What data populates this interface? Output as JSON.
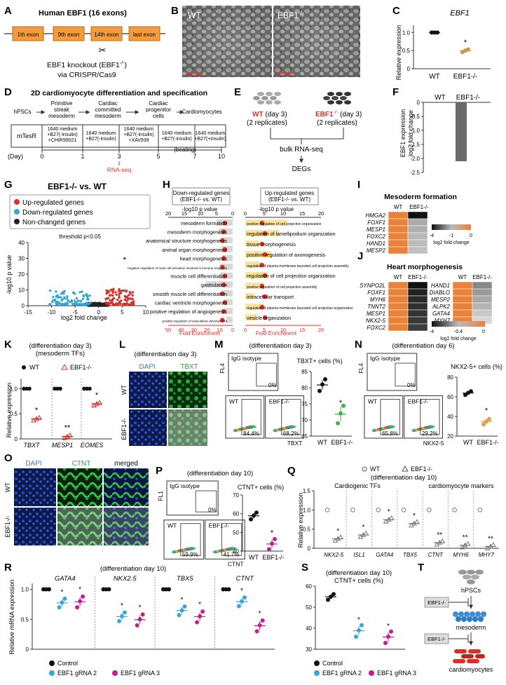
{
  "figure": {
    "panels": {
      "A": {
        "letter": "A",
        "title": "Human EBF1 (16 exons)",
        "exons": [
          "1th exon",
          "9th exon",
          "14th exon",
          "last exon"
        ],
        "knockout": "EBF1 knockout (EBF1",
        "knockout_sup": "-/-",
        "knockout_end": ")",
        "method": "via CRISPR/Cas9"
      },
      "B": {
        "letter": "B",
        "wt": "WT",
        "ko": "EBF1",
        "ko_sup": "-/-"
      },
      "C": {
        "letter": "C",
        "gene": "EBF1",
        "ylabel": "Relative expression",
        "ticks": [
          "0",
          "0.5",
          "1.0"
        ],
        "x": [
          "WT",
          "EBF1-/-"
        ],
        "star": "*"
      },
      "D": {
        "letter": "D",
        "title": "2D cardiomyocyte differentiation and specification",
        "stages": [
          "hPSCs",
          "Primitive streak mesoderm",
          "Cardiac committed mesoderm",
          "Cardiac progenitor cells",
          "Cardiomyocytes"
        ],
        "media": [
          "mTesR",
          "1640 medium +B27(-insulin) +CHIR99021",
          "1640 medium +B27(-insulin)",
          "1640 medium +B27(-insulin) +XAV939",
          "1640 medium +B27(-insulin)",
          "1640 medium +B27(+insulin)"
        ],
        "day_label": "(Day)",
        "days": [
          "0",
          "1",
          "3",
          "5",
          "7",
          "10"
        ],
        "beating": "(beating)",
        "rnaseq": "RNA-seq"
      },
      "E": {
        "letter": "E",
        "wt": "WT",
        "wt_day": "(day 3)",
        "ko": "EBF1",
        "ko_sup": "-/-",
        "ko_day": "(day 3)",
        "rep": "(2 replicates)",
        "bulk": "bulk RNA-seq",
        "degs": "DEGs"
      },
      "F": {
        "letter": "F",
        "xlabels": [
          "WT",
          "EBF1-/-"
        ],
        "ylabel1": "EBF1 expression",
        "ylabel2": "log2 fold change",
        "ticks": [
          "0",
          "-0.5",
          "-1.0",
          "-1.5",
          "-2.0",
          "-2.5"
        ]
      },
      "G": {
        "letter": "G",
        "title": "EBF1-/- vs. WT",
        "legend": [
          "Up-regulated genes",
          "Down-regulated genes",
          "Non-changed genes"
        ],
        "threshold": "threshold p<0.05",
        "ylabel": "-log10 p value",
        "xlabel": "log2 fold change",
        "xticks": [
          "-15",
          "-10",
          "-5",
          "0",
          "5",
          "10"
        ],
        "yticks": [
          "0",
          "10",
          "20",
          "30",
          "40"
        ]
      },
      "H": {
        "letter": "H",
        "down_header": "Down-regulated genes (EBF1-/- vs. WT)",
        "up_header": "Up-regulated genes (EBF1-/- vs. WT)",
        "pval": "-log10 p value",
        "fold": "Fold Enrichment",
        "down_terms": [
          "mesoderm formation",
          "mesoderm morphogenesis",
          "anatomical structure morphogenesis",
          "animal organ morphogenesis",
          "heart morphogenesis",
          "negative regulation of mast cell activation involved in immune response",
          "muscle cell differentiation",
          "gastrulation",
          "smooth muscle cell differentiation",
          "cardiac ventricle morphogenesis",
          "positive regulation of angiogenesis",
          "positive regulation of vasculature development"
        ],
        "up_terms": [
          "positive regulation of cell projection organization",
          "regulation of lamellipodium organization",
          "tissue morphogenesis",
          "positive regulation of axonogenesis",
          "regulation of plasma membrane bounded cell projection assembly",
          "regulation of cell projection organization",
          "positive regulation of cell projection assembly",
          "intracellular transport",
          "regulation of plasma membrane bounded cell projection organization",
          "vesicle organization"
        ],
        "down_top_ticks": [
          "20",
          "15",
          "10",
          "5",
          "0"
        ],
        "down_bot_ticks": [
          "50",
          "40",
          "30",
          "20",
          "10",
          "0"
        ],
        "up_top_ticks": [
          "0",
          "5",
          "10",
          "15",
          "20"
        ],
        "up_bot_ticks": [
          "0",
          "5",
          "10",
          "15",
          "20"
        ]
      },
      "I": {
        "letter": "I",
        "title": "Mesoderm formation",
        "cols": [
          "WT",
          "EBF1-/-"
        ],
        "genes": [
          "HMGA2",
          "FOXF1",
          "MESP1",
          "FOXC2",
          "HAND1",
          "MESP2"
        ],
        "scale": [
          "-4",
          "-1",
          "0"
        ],
        "scale_label": "log2 fold change"
      },
      "J": {
        "letter": "J",
        "title": "Heart morphogenesis",
        "cols": [
          "WT",
          "EBF1-/-"
        ],
        "genes_left": [
          "SYNPO2L",
          "FOXF1",
          "MYH6",
          "TNNT2",
          "MESP1",
          "NKX2-5",
          "FOXC2"
        ],
        "genes_right": [
          "HAND1",
          "DIABLO",
          "MESP2",
          "ALPK2",
          "GATA4",
          "MYH7"
        ],
        "scale": [
          "-4",
          "-0.4",
          "0"
        ],
        "scale_label": "log2 fold change"
      },
      "K": {
        "letter": "K",
        "title": "(differentiation day 3)",
        "subtitle": "(mesoderm TFs)",
        "legend": [
          "WT",
          "EBF1-/-"
        ],
        "ylabel": "Relative expression",
        "genes": [
          "TBXT",
          "MESP1",
          "EOMES"
        ],
        "ticks": [
          "0",
          "0.5",
          "1.0"
        ],
        "stars": [
          "*",
          "**",
          "*"
        ]
      },
      "L": {
        "letter": "L",
        "title": "(differentiation day 3)",
        "ch1": "DAPI",
        "ch2": "TBXT",
        "rows": [
          "WT",
          "EBF1-/-"
        ]
      },
      "M": {
        "letter": "M",
        "title": "(differentiation day 3)",
        "isotype": "IgG isotype",
        "iso_pct": "0%",
        "wt": "WT",
        "ko": "EBF1-/-",
        "wt_pct": "84.4%",
        "ko_pct": "68.2%",
        "yaxis": "FL4",
        "xaxis": "TBXT",
        "chart_title": "TBXT+ cells (%)",
        "ticks": [
          "65",
          "70",
          "75",
          "80",
          "85"
        ],
        "x": [
          "WT",
          "EBF1-/-"
        ],
        "star": "*"
      },
      "N": {
        "letter": "N",
        "title": "(differentiation day 6)",
        "isotype": "IgG isotype",
        "iso_pct": "0%",
        "wt": "WT",
        "ko": "EBF1-/-",
        "wt_pct": "65.8%",
        "ko_pct": "29.2%",
        "yaxis": "FL4",
        "xaxis": "NKX2-5",
        "chart_title": "NKX2-5+ cells (%)",
        "ticks": [
          "20",
          "40",
          "60",
          "80"
        ],
        "x": [
          "WT",
          "EBF1-/-"
        ],
        "star": "*"
      },
      "O": {
        "letter": "O",
        "ch1": "DAPI",
        "ch2": "CTNT",
        "ch3": "merged",
        "rows": [
          "WT",
          "EBF1-/-"
        ]
      },
      "P": {
        "letter": "P",
        "title": "(differentiation day 10)",
        "isotype": "IgG isotype",
        "iso_pct": "0%",
        "wt": "WT",
        "ko": "EBF1-/-",
        "wt_pct": "59.9%",
        "ko_pct": "41.7%",
        "yaxis": "FL1",
        "xaxis": "CTNT",
        "chart_title": "CTNT+ cells (%)",
        "ticks": [
          "40",
          "50",
          "60",
          "70"
        ],
        "x": [
          "WT",
          "EBF1-/-"
        ],
        "star": "*"
      },
      "Q": {
        "letter": "Q",
        "legend": [
          "WT",
          "EBF1-/-"
        ],
        "title": "(differentiation day 10)",
        "group1": "Cardiogenic TFs",
        "group2": "cardiomyocyte markers",
        "ylabel": "Relative expression",
        "ticks": [
          "0",
          "0.5",
          "1.0",
          "1.5"
        ],
        "genes": [
          "NKX2-5",
          "ISL1",
          "GATA4",
          "TBX5",
          "CTNT",
          "MYH6",
          "MHY7"
        ],
        "stars": [
          "*",
          "*",
          "*",
          "*",
          "**",
          "**",
          "**"
        ]
      },
      "R": {
        "letter": "R",
        "title": "(differentiation day 10)",
        "ylabel": "Relative mRNA expression",
        "genes": [
          "GATA4",
          "NKX2.5",
          "TBX5",
          "CTNT"
        ],
        "ticks": [
          "0",
          "0.5",
          "1.0"
        ],
        "legend": [
          "Control",
          "EBF1 gRNA 2",
          "EBF1 gRNA 3"
        ]
      },
      "S": {
        "letter": "S",
        "title": "(differentiation day 10)",
        "subtitle": "CTNT+ cells (%)",
        "ticks": [
          "30",
          "40",
          "50",
          "60"
        ],
        "legend": [
          "Control",
          "EBF1 gRNA 2",
          "EBF1 gRNA 3"
        ]
      },
      "T": {
        "letter": "T",
        "hpscs": "hPSCs",
        "mesoderm": "mesoderm",
        "cardio": "cardiomyocytes",
        "ko": "EBF1-/-"
      }
    },
    "colors": {
      "orange": "#f0a050",
      "exon": "#f39c3c",
      "red": "#d9302c",
      "blue": "#35a8d6",
      "magenta": "#c0208c",
      "gold": "#e0a040",
      "tan": "#c79a4a",
      "green": "#3fb34f",
      "grey": "#6b6b6b"
    }
  },
  "chart_data": [
    {
      "type": "scatter",
      "panel": "C",
      "categories": [
        "WT",
        "EBF1-/-"
      ],
      "values": [
        1.0,
        0.5
      ],
      "ylabel": "Relative expression",
      "ylim": [
        0,
        1.2
      ]
    },
    {
      "type": "bar",
      "panel": "F",
      "categories": [
        "WT",
        "EBF1-/-"
      ],
      "values": [
        0,
        -2.1
      ],
      "ylim": [
        -2.5,
        0
      ]
    },
    {
      "type": "scatter",
      "panel": "K",
      "categories": [
        "TBXT",
        "MESP1",
        "EOMES"
      ],
      "series": [
        {
          "name": "WT",
          "values": [
            1.0,
            1.0,
            1.0
          ]
        },
        {
          "name": "EBF1-/-",
          "values": [
            0.4,
            0.05,
            0.7
          ]
        }
      ],
      "ylim": [
        0,
        1.2
      ]
    },
    {
      "type": "scatter",
      "panel": "M",
      "categories": [
        "WT",
        "EBF1-/-"
      ],
      "values": [
        81,
        72
      ],
      "ylim": [
        65,
        85
      ]
    },
    {
      "type": "scatter",
      "panel": "N",
      "categories": [
        "WT",
        "EBF1-/-"
      ],
      "values": [
        64,
        35
      ],
      "ylim": [
        20,
        80
      ]
    },
    {
      "type": "scatter",
      "panel": "P",
      "categories": [
        "WT",
        "EBF1-/-"
      ],
      "values": [
        59,
        44
      ],
      "ylim": [
        40,
        70
      ]
    },
    {
      "type": "scatter",
      "panel": "Q",
      "categories": [
        "NKX2-5",
        "ISL1",
        "GATA4",
        "TBX5",
        "CTNT",
        "MYH6",
        "MHY7"
      ],
      "series": [
        {
          "name": "WT",
          "values": [
            1,
            1,
            1,
            1,
            1,
            1,
            1
          ]
        },
        {
          "name": "EBF1-/-",
          "values": [
            0.25,
            0.35,
            0.75,
            0.65,
            0.15,
            0.08,
            0.05
          ]
        }
      ],
      "ylim": [
        0,
        1.5
      ]
    },
    {
      "type": "scatter",
      "panel": "R",
      "categories": [
        "GATA4",
        "NKX2.5",
        "TBX5",
        "CTNT"
      ],
      "series": [
        {
          "name": "Control",
          "values": [
            1,
            1,
            1,
            1
          ]
        },
        {
          "name": "EBF1 gRNA 2",
          "values": [
            0.78,
            0.55,
            0.65,
            0.8
          ]
        },
        {
          "name": "EBF1 gRNA 3",
          "values": [
            0.8,
            0.5,
            0.55,
            0.4
          ]
        }
      ],
      "ylim": [
        0,
        1.1
      ]
    },
    {
      "type": "scatter",
      "panel": "S",
      "categories": [
        "Control",
        "EBF1 gRNA 2",
        "EBF1 gRNA 3"
      ],
      "values": [
        55,
        39,
        36
      ],
      "ylim": [
        30,
        60
      ]
    }
  ]
}
